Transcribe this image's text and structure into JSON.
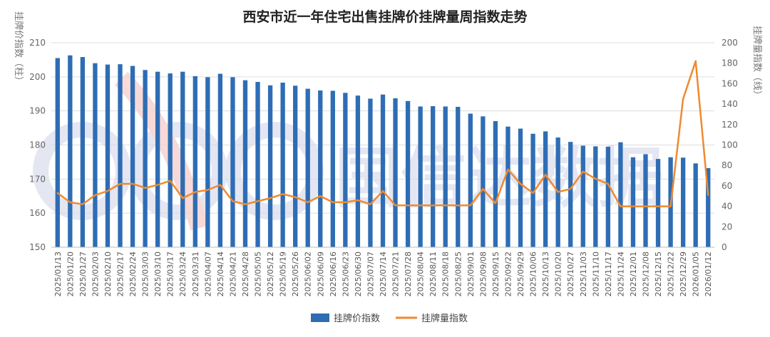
{
  "chart_data": {
    "type": "bar+line",
    "title": "西安市近一年住宅出售挂牌价挂牌量周指数走势",
    "y_left_label": "挂牌价指数（柱）",
    "y_right_label": "挂牌量指数（线）",
    "y_left_lim": [
      150,
      210
    ],
    "y_left_ticks": [
      150,
      160,
      170,
      180,
      190,
      200,
      210
    ],
    "y_right_lim": [
      0,
      200
    ],
    "y_right_ticks": [
      0,
      20,
      40,
      60,
      80,
      100,
      120,
      140,
      160,
      180,
      200
    ],
    "grid": true,
    "legend_position": "bottom",
    "categories": [
      "2025/01/13",
      "2025/01/20",
      "2025/01/27",
      "2025/02/03",
      "2025/02/10",
      "2025/02/17",
      "2025/02/24",
      "2025/03/03",
      "2025/03/10",
      "2025/03/17",
      "2025/03/24",
      "2025/03/31",
      "2025/04/07",
      "2025/04/14",
      "2025/04/21",
      "2025/04/28",
      "2025/05/05",
      "2025/05/12",
      "2025/05/19",
      "2025/05/26",
      "2025/06/02",
      "2025/06/09",
      "2025/06/16",
      "2025/06/23",
      "2025/06/30",
      "2025/07/07",
      "2025/07/14",
      "2025/07/21",
      "2025/07/28",
      "2025/08/04",
      "2025/08/11",
      "2025/08/18",
      "2025/08/25",
      "2025/09/01",
      "2025/09/08",
      "2025/09/15",
      "2025/09/22",
      "2025/09/29",
      "2025/10/06",
      "2025/10/13",
      "2025/10/20",
      "2025/10/27",
      "2025/11/03",
      "2025/11/10",
      "2025/11/17",
      "2025/11/24",
      "2025/12/01",
      "2025/12/08",
      "2025/12/15",
      "2025/12/22",
      "2025/12/29",
      "2026/01/05",
      "2026/01/12"
    ],
    "series": [
      {
        "name": "挂牌价指数",
        "type": "bar",
        "axis": "left",
        "color": "#2e6db4",
        "values": [
          205.5,
          206.3,
          205.8,
          204,
          203.6,
          203.7,
          203.2,
          202,
          201.5,
          201,
          201.5,
          200.2,
          199.9,
          200.9,
          199.9,
          199,
          198.5,
          197.5,
          198.3,
          197.4,
          196.5,
          196,
          195.9,
          195.3,
          194.5,
          193.6,
          194.8,
          193.7,
          192.9,
          191.3,
          191.4,
          191.3,
          191.2,
          189.2,
          188.4,
          187,
          185.4,
          184.8,
          183.3,
          184,
          182.2,
          180.9,
          179.8,
          179.6,
          179.5,
          180.8,
          176.4,
          177.3,
          175.9,
          176.4,
          176.3,
          174.6,
          173.2
        ]
      },
      {
        "name": "挂牌量指数",
        "type": "line",
        "axis": "right",
        "color": "#ee8a2f",
        "values": [
          53,
          44,
          42,
          51,
          55,
          62,
          62,
          58,
          61,
          65,
          48,
          54,
          56,
          61,
          45,
          42,
          45,
          48,
          52,
          49,
          44,
          50,
          44,
          44,
          46,
          42,
          55,
          41,
          41,
          41,
          41,
          41,
          41,
          41,
          57,
          43,
          76,
          62,
          53,
          71,
          54,
          57,
          74,
          67,
          62,
          40,
          40,
          40,
          40,
          40,
          145,
          182,
          51
        ]
      }
    ]
  },
  "watermark": {
    "logo_text": "GXD",
    "brand_text": "国信达数据"
  }
}
